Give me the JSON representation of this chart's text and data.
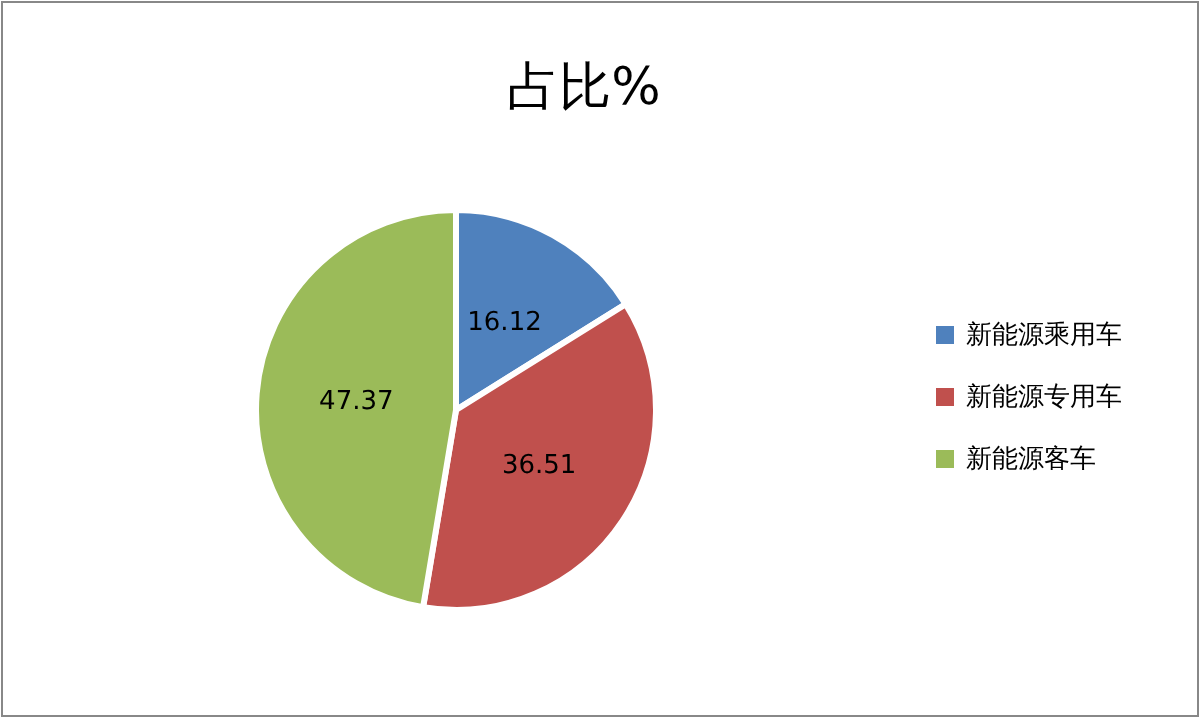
{
  "chart_data": {
    "type": "pie",
    "title": "占比%",
    "categories": [
      "新能源乘用车",
      "新能源专用车",
      "新能源客车"
    ],
    "values": [
      16.12,
      36.51,
      47.37
    ],
    "colors": [
      "#4f81bd",
      "#c0504d",
      "#9bbb59"
    ],
    "data_labels": true,
    "legend": "right"
  }
}
